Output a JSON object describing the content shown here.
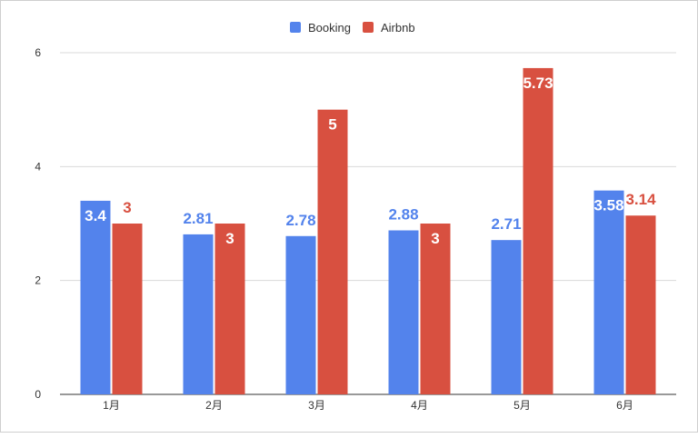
{
  "chart_data": {
    "type": "bar",
    "title": "",
    "xlabel": "",
    "ylabel": "",
    "categories": [
      "1月",
      "2月",
      "3月",
      "4月",
      "5月",
      "6月"
    ],
    "series": [
      {
        "name": "Booking",
        "color": "#5383EC",
        "values": [
          3.4,
          2.81,
          2.78,
          2.88,
          2.71,
          3.58
        ],
        "labels": [
          "3.4",
          "2.81",
          "2.78",
          "2.88",
          "2.71",
          "3.58"
        ]
      },
      {
        "name": "Airbnb",
        "color": "#D85040",
        "values": [
          3,
          3,
          5,
          3,
          5.73,
          3.14
        ],
        "labels": [
          "3",
          "3",
          "5",
          "3",
          "5.73",
          "3.14"
        ]
      }
    ],
    "ylim": [
      0,
      6
    ],
    "yticks": [
      "0",
      "2",
      "4",
      "6"
    ],
    "grid": true,
    "legend_position": "top-center"
  }
}
